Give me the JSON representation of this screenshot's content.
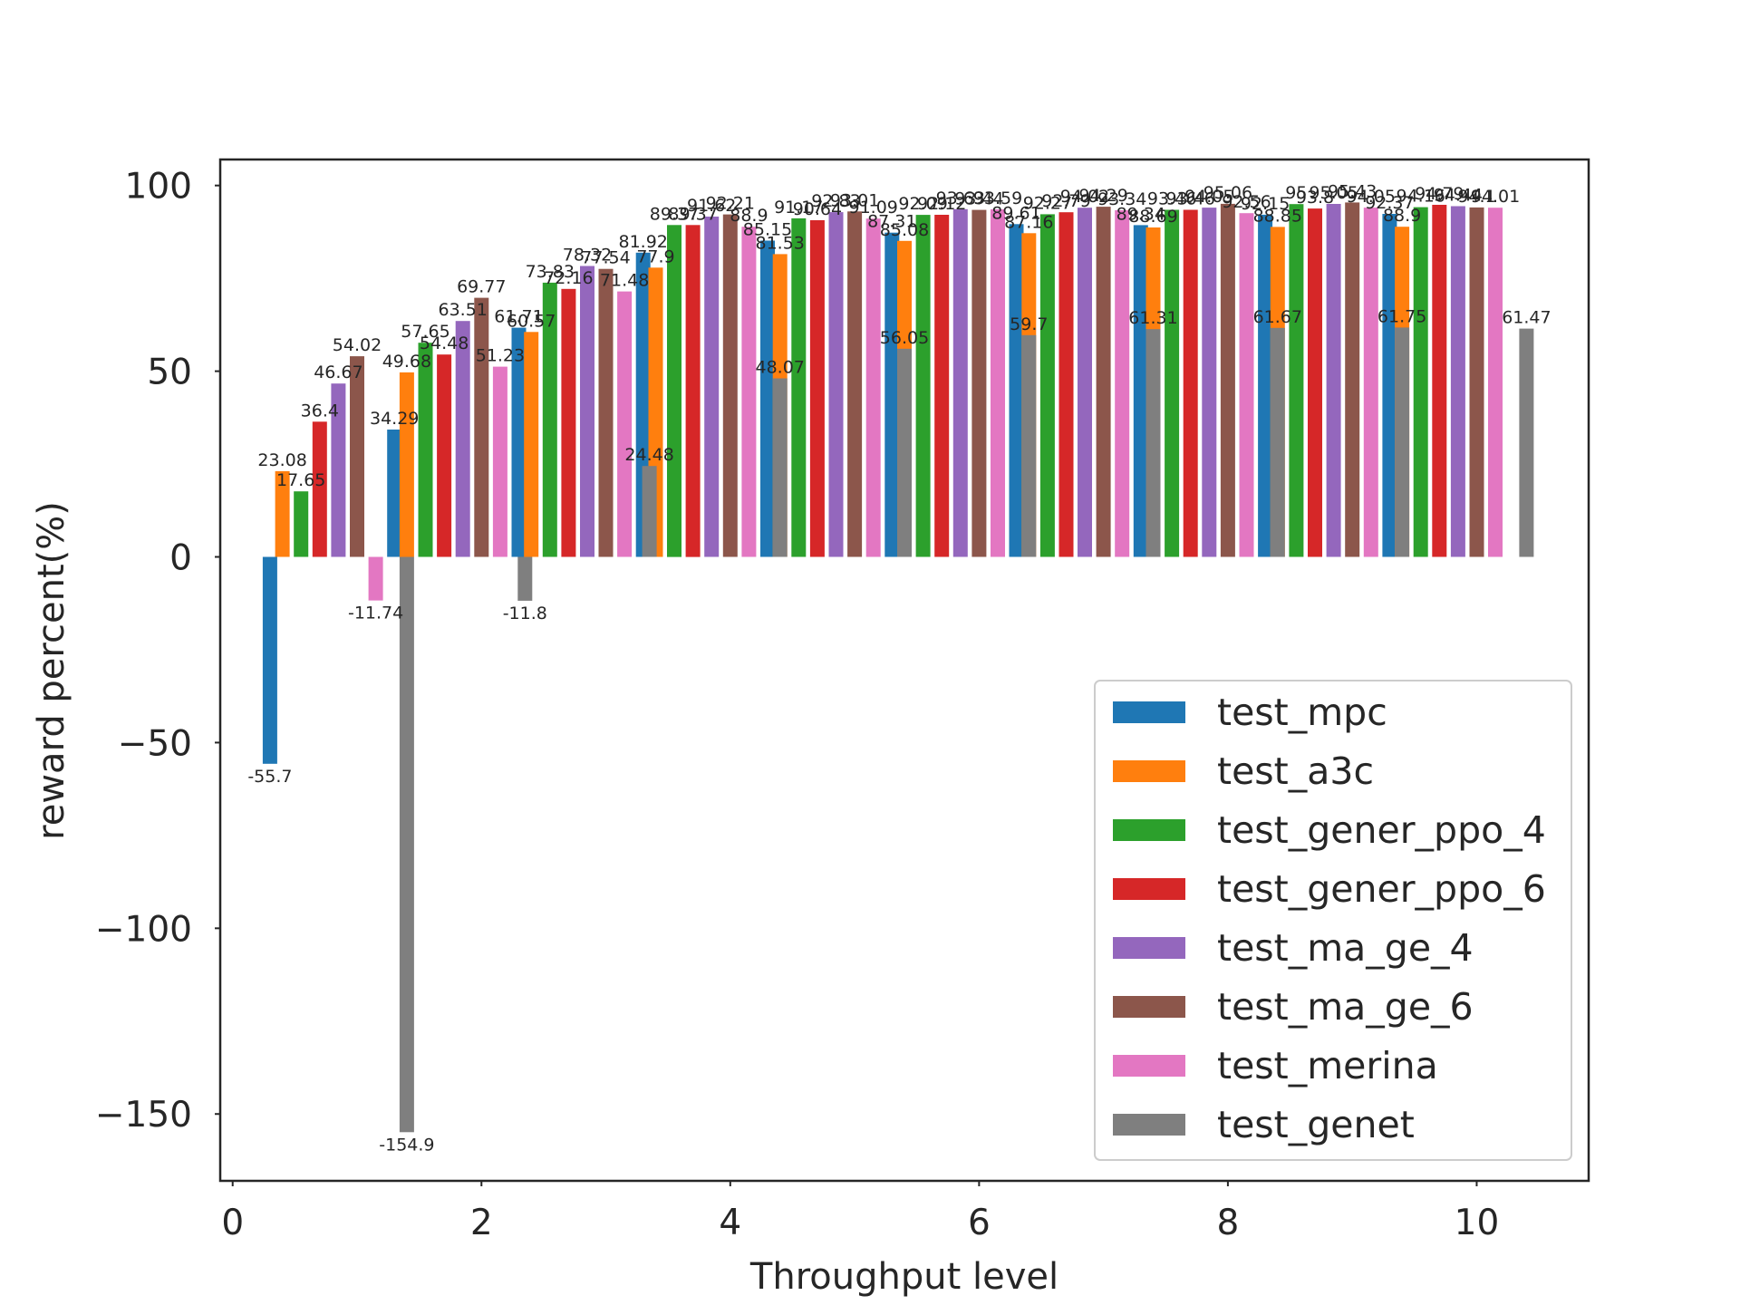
{
  "chart_data": {
    "type": "bar",
    "title": "",
    "xlabel": "Throughput level",
    "ylabel": "reward percent(%)",
    "xlim": [
      -0.1,
      10.9
    ],
    "ylim": [
      -168,
      107
    ],
    "xticks": [
      "0",
      "2",
      "4",
      "6",
      "8",
      "10"
    ],
    "yticks": [
      "100",
      "50",
      "0",
      "−50",
      "−100",
      "−150"
    ],
    "grid": false,
    "legend_position": "lower-right",
    "series": [
      {
        "name": "test_mpc",
        "color": "#1f77b4",
        "x": [
          0.3,
          1.3,
          2.3,
          3.3,
          4.3,
          5.3,
          6.3,
          7.3,
          8.3,
          9.3
        ],
        "values": [
          -55.7,
          34.29,
          61.71,
          81.92,
          85.15,
          87.31,
          89.61,
          89.34,
          92.15,
          92.37
        ]
      },
      {
        "name": "test_a3c",
        "color": "#ff7f0e",
        "x": [
          0.4,
          1.4,
          2.4,
          3.4,
          4.4,
          5.4,
          6.4,
          7.4,
          8.4,
          9.4
        ],
        "values": [
          23.08,
          49.68,
          60.57,
          77.9,
          81.53,
          85.08,
          87.16,
          88.69,
          88.85,
          88.9
        ]
      },
      {
        "name": "test_gener_ppo_4",
        "color": "#2ca02c",
        "x": [
          0.55,
          1.55,
          2.55,
          3.55,
          4.55,
          5.55,
          6.55,
          7.55,
          8.55,
          9.55
        ],
        "values": [
          17.65,
          57.65,
          73.83,
          89.37,
          91.17,
          92.09,
          92.27,
          93.46,
          95.0,
          94.16
        ]
      },
      {
        "name": "test_gener_ppo_6",
        "color": "#d62728",
        "x": [
          0.7,
          1.7,
          2.7,
          3.7,
          4.7,
          5.7,
          6.7,
          7.7,
          8.7,
          9.7
        ],
        "values": [
          36.4,
          54.48,
          72.16,
          89.37,
          90.64,
          92.12,
          92.79,
          93.46,
          93.8,
          94.79
        ]
      },
      {
        "name": "test_ma_ge_4",
        "color": "#9467bd",
        "x": [
          0.85,
          1.85,
          2.85,
          3.85,
          4.85,
          5.85,
          6.85,
          7.85,
          8.85,
          9.85
        ],
        "values": [
          46.67,
          63.51,
          78.32,
          91.62,
          92.83,
          93.63,
          94.02,
          94.05,
          95.05,
          94.44
        ]
      },
      {
        "name": "test_ma_ge_6",
        "color": "#8c564b",
        "x": [
          1.0,
          2.0,
          3.0,
          4.0,
          5.0,
          6.0,
          7.0,
          8.0,
          9.0,
          10.0
        ],
        "values": [
          54.02,
          69.77,
          77.54,
          92.21,
          93.01,
          93.44,
          94.29,
          95.06,
          95.43,
          94.1
        ]
      },
      {
        "name": "test_merina",
        "color": "#e377c2",
        "x": [
          1.15,
          2.15,
          3.15,
          4.15,
          5.15,
          6.15,
          7.15,
          8.15,
          9.15,
          10.15
        ],
        "values": [
          -11.74,
          51.23,
          71.48,
          88.9,
          91.09,
          93.59,
          93.34,
          92.56,
          94.05,
          94.01
        ]
      },
      {
        "name": "test_genet",
        "color": "#7f7f7f",
        "x": [
          1.4,
          2.35,
          3.35,
          4.4,
          5.4,
          6.4,
          7.4,
          8.4,
          9.4,
          10.4
        ],
        "values": [
          -154.9,
          -11.8,
          24.48,
          48.07,
          56.05,
          59.7,
          61.31,
          61.67,
          61.75,
          61.47
        ]
      }
    ]
  }
}
